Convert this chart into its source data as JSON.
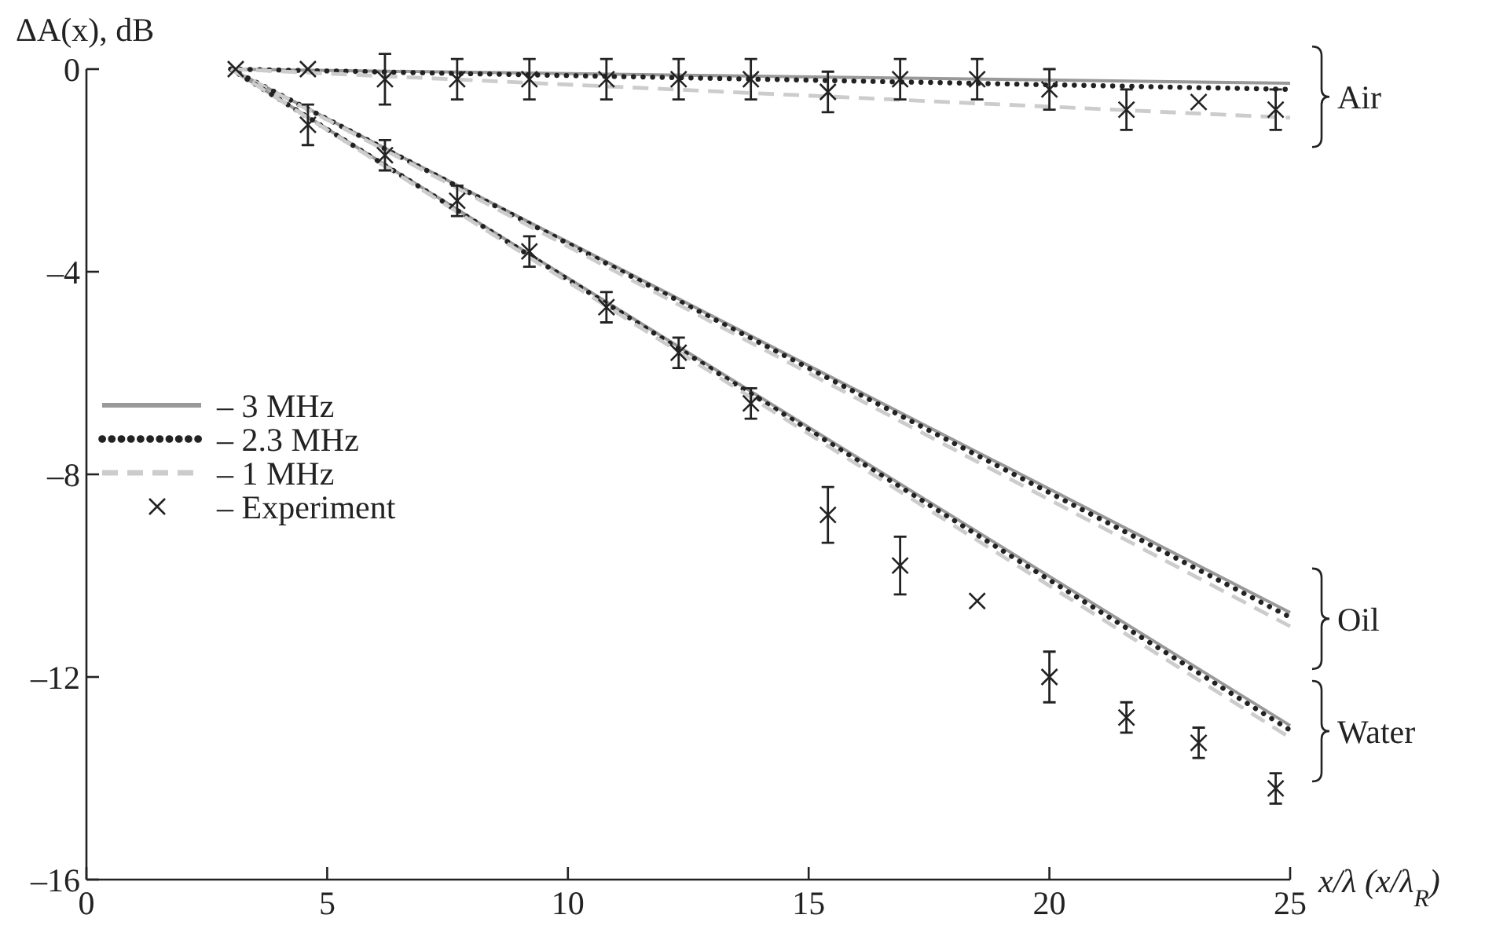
{
  "chart_data": {
    "type": "line",
    "ylabel": "ΔA(x), dB",
    "xlabel": "x/λ (x/λ$_{R}$)",
    "xlim": [
      0,
      25
    ],
    "ylim": [
      -16,
      0
    ],
    "xticks": [
      0,
      5,
      10,
      15,
      20,
      25
    ],
    "yticks": [
      {
        "value": -16,
        "label": "–16"
      },
      {
        "value": -12,
        "label": "–12"
      },
      {
        "value": -8,
        "label": "–8"
      },
      {
        "value": -4,
        "label": "–4"
      },
      0
    ],
    "grid": false,
    "legend": "left",
    "marker": "none",
    "series": [
      {
        "name": "– 3 MHz",
        "color": "#999999",
        "line_style": "solid",
        "x": [
          3,
          25
        ],
        "values": [
          0,
          -0.28
        ]
      },
      {
        "name": "– 2.3 MHz",
        "color": "#222222",
        "line_style": "dotted",
        "x": [
          3,
          25
        ],
        "values": [
          0,
          -0.4
        ]
      },
      {
        "name": "– 1 MHz",
        "color": "#cccccc",
        "line_style": "dashed",
        "x": [
          3,
          25
        ],
        "values": [
          0,
          -0.96
        ]
      },
      {
        "color": "#999999",
        "line_style": "solid",
        "x": [
          3,
          25
        ],
        "values": [
          0,
          -10.73
        ]
      },
      {
        "color": "#222222",
        "line_style": "dotted",
        "x": [
          3,
          25
        ],
        "values": [
          0,
          -10.82
        ]
      },
      {
        "color": "#cccccc",
        "line_style": "dashed",
        "x": [
          3,
          25
        ],
        "values": [
          0,
          -11.0
        ]
      },
      {
        "color": "#999999",
        "line_style": "solid",
        "x": [
          3,
          25
        ],
        "values": [
          0,
          -12.96
        ]
      },
      {
        "color": "#222222",
        "line_style": "dotted",
        "x": [
          3,
          25
        ],
        "values": [
          0,
          -13.05
        ]
      },
      {
        "color": "#cccccc",
        "line_style": "dashed",
        "x": [
          3,
          25
        ],
        "values": [
          0,
          -13.2
        ]
      },
      {
        "name": "– Experiment",
        "type": "scatter",
        "marker": "cross",
        "color": "#222222",
        "x": [
          4.6,
          6.2,
          7.7,
          9.2,
          10.8,
          12.3,
          13.8,
          15.4,
          16.9,
          18.5,
          20.0,
          21.6,
          23.1,
          24.7,
          3.1,
          4.6,
          6.2,
          7.7,
          9.2,
          10.8,
          12.3,
          13.8,
          15.4,
          16.9,
          18.5,
          20.0,
          21.6,
          23.1,
          24.7
        ],
        "values": [
          0,
          -0.2,
          -0.2,
          -0.2,
          -0.2,
          -0.2,
          -0.2,
          -0.45,
          -0.2,
          -0.2,
          -0.4,
          -0.8,
          -0.65,
          -0.8,
          0,
          -1.1,
          -1.7,
          -2.6,
          -3.6,
          -4.7,
          -5.6,
          -6.6,
          -8.8,
          -9.8,
          -10.5,
          -12.0,
          -12.8,
          -13.3,
          -14.2
        ],
        "errors": [
          null,
          0.5,
          0.4,
          0.4,
          0.4,
          0.4,
          0.4,
          0.4,
          0.4,
          0.4,
          0.4,
          0.4,
          null,
          0.4,
          null,
          0.4,
          0.3,
          0.3,
          0.3,
          0.3,
          0.3,
          0.3,
          0.55,
          0.57,
          null,
          0.5,
          0.3,
          0.3,
          0.3
        ]
      }
    ],
    "annotations": [
      "Air",
      "Oil",
      "Water"
    ]
  }
}
